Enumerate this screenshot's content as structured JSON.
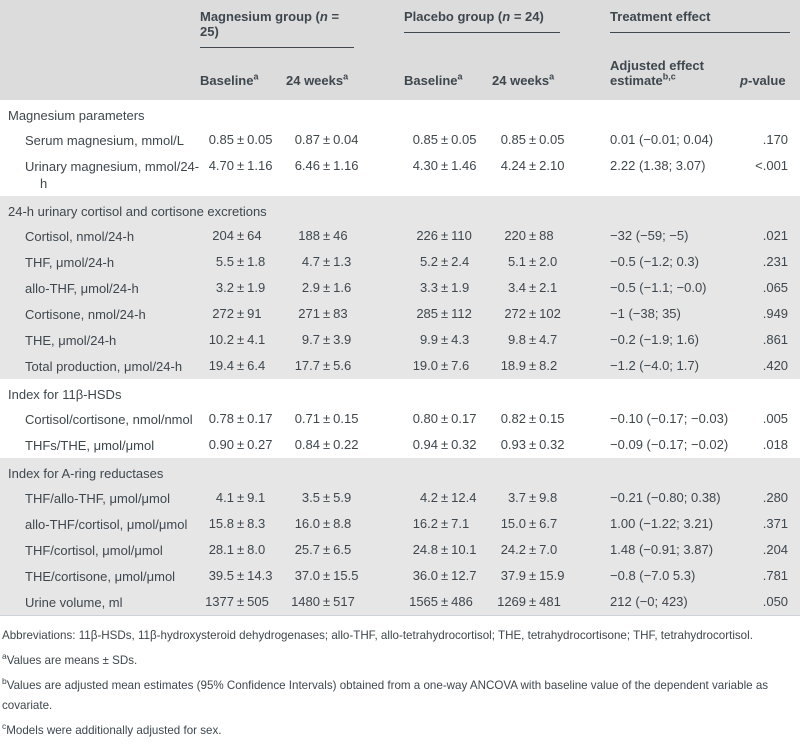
{
  "colors": {
    "header_bg": "#dcdcdc",
    "section_bg": "#e6e6e6",
    "text": "#3e474e",
    "rule": "#3e474e"
  },
  "header": {
    "groups": [
      {
        "pre": "Magnesium group (",
        "italic": "n",
        "post": " = 25)"
      },
      {
        "pre": "Placebo group (",
        "italic": "n",
        "post": " = 24)"
      },
      {
        "pre": "Treatment effect",
        "italic": "",
        "post": ""
      }
    ],
    "columns": [
      {
        "italic_pre": "",
        "label": "Baseline",
        "sup": "a"
      },
      {
        "italic_pre": "",
        "label": "24 weeks",
        "sup": "a"
      },
      {
        "italic_pre": "",
        "label": "Baseline",
        "sup": "a"
      },
      {
        "italic_pre": "",
        "label": "24 weeks",
        "sup": "a"
      },
      {
        "italic_pre": "",
        "label": "Adjusted effect estimate",
        "sup": "b,c"
      },
      {
        "italic_pre": "p",
        "label": "-value",
        "sup": ""
      }
    ]
  },
  "sections": [
    {
      "title": "Magnesium parameters",
      "shaded": false,
      "rows": [
        {
          "label": "Serum magnesium, mmol/L",
          "values": [
            "0.85 ± 0.05",
            "0.87 ± 0.04",
            "0.85 ± 0.05",
            "0.85 ± 0.05"
          ],
          "effect": "0.01 (−0.01; 0.04)",
          "p": ".170"
        },
        {
          "label": "Urinary magnesium, mmol/24-h",
          "values": [
            "4.70 ± 1.16",
            "6.46 ± 1.16",
            "4.30 ± 1.46",
            "4.24 ± 2.10"
          ],
          "effect": "2.22 (1.38; 3.07)",
          "p": "<.001"
        }
      ]
    },
    {
      "title": "24-h urinary cortisol and cortisone excretions",
      "shaded": true,
      "rows": [
        {
          "label": "Cortisol, nmol/24-h",
          "values": [
            "204 ± 64",
            "188 ± 46",
            "226 ± 110",
            "220 ± 88"
          ],
          "effect": "−32 (−59; −5)",
          "p": ".021"
        },
        {
          "label": "THF, μmol/24-h",
          "values": [
            "5.5 ± 1.8",
            "4.7 ± 1.3",
            "5.2 ± 2.4",
            "5.1 ± 2.0"
          ],
          "effect": "−0.5 (−1.2; 0.3)",
          "p": ".231"
        },
        {
          "label": "allo-THF, μmol/24-h",
          "values": [
            "3.2 ± 1.9",
            "2.9 ± 1.6",
            "3.3 ± 1.9",
            "3.4 ± 2.1"
          ],
          "effect": "−0.5 (−1.1; −0.0)",
          "p": ".065"
        },
        {
          "label": "Cortisone, nmol/24-h",
          "values": [
            "272 ± 91",
            "271 ± 83",
            "285 ± 112",
            "272 ± 102"
          ],
          "effect": "−1 (−38; 35)",
          "p": ".949"
        },
        {
          "label": "THE, μmol/24-h",
          "values": [
            "10.2 ± 4.1",
            "9.7 ± 3.9",
            "9.9 ± 4.3",
            "9.8 ± 4.7"
          ],
          "effect": "−0.2 (−1.9; 1.6)",
          "p": ".861"
        },
        {
          "label": "Total production, μmol/24-h",
          "values": [
            "19.4 ± 6.4",
            "17.7 ± 5.6",
            "19.0 ± 7.6",
            "18.9 ± 8.2"
          ],
          "effect": "−1.2 (−4.0; 1.7)",
          "p": ".420"
        }
      ]
    },
    {
      "title": "Index for 11β-HSDs",
      "shaded": false,
      "rows": [
        {
          "label": "Cortisol/cortisone, nmol/nmol",
          "values": [
            "0.78 ± 0.17",
            "0.71 ± 0.15",
            "0.80 ± 0.17",
            "0.82 ± 0.15"
          ],
          "effect": "−0.10 (−0.17; −0.03)",
          "p": ".005"
        },
        {
          "label": "THFs/THE, μmol/μmol",
          "values": [
            "0.90 ± 0.27",
            "0.84 ± 0.22",
            "0.94 ± 0.32",
            "0.93 ± 0.32"
          ],
          "effect": "−0.09 (−0.17; −0.02)",
          "p": ".018"
        }
      ]
    },
    {
      "title": "Index for A-ring reductases",
      "shaded": true,
      "rows": [
        {
          "label": "THF/allo-THF, μmol/μmol",
          "values": [
            "4.1 ± 9.1",
            "3.5 ± 5.9",
            "4.2 ± 12.4",
            "3.7 ± 9.8"
          ],
          "effect": "−0.21 (−0.80; 0.38)",
          "p": ".280"
        },
        {
          "label": "allo-THF/cortisol, μmol/μmol",
          "values": [
            "15.8 ± 8.3",
            "16.0 ± 8.8",
            "16.2 ± 7.1",
            "15.0 ± 6.7"
          ],
          "effect": "1.00 (−1.22; 3.21)",
          "p": ".371"
        },
        {
          "label": "THF/cortisol, μmol/μmol",
          "values": [
            "28.1 ± 8.0",
            "25.7 ± 6.5",
            "24.8 ± 10.1",
            "24.2 ± 7.0"
          ],
          "effect": "1.48 (−0.91; 3.87)",
          "p": ".204"
        },
        {
          "label": "THE/cortisone, μmol/μmol",
          "values": [
            "39.5 ± 14.3",
            "37.0 ± 15.5",
            "36.0 ± 12.7",
            "37.9 ± 15.9"
          ],
          "effect": "−0.8 (−7.0 5.3)",
          "p": ".781"
        },
        {
          "label": "Urine volume, ml",
          "values": [
            "1377 ± 505",
            "1480 ± 517",
            "1565 ± 486",
            "1269 ± 481"
          ],
          "effect": "212 (−0; 423)",
          "p": ".050"
        }
      ]
    }
  ],
  "footnotes": [
    {
      "sup": "",
      "text": "Abbreviations: 11β-HSDs, 11β-hydroxysteroid dehydrogenases; allo-THF, allo-tetrahydrocortisol; THE, tetrahydrocortisone; THF, tetrahydrocortisol."
    },
    {
      "sup": "a",
      "text": "Values are means ± SDs."
    },
    {
      "sup": "b",
      "text": "Values are adjusted mean estimates (95% Confidence Intervals) obtained from a one-way ANCOVA with baseline value of the dependent variable as covariate."
    },
    {
      "sup": "c",
      "text": "Models were additionally adjusted for sex."
    }
  ]
}
